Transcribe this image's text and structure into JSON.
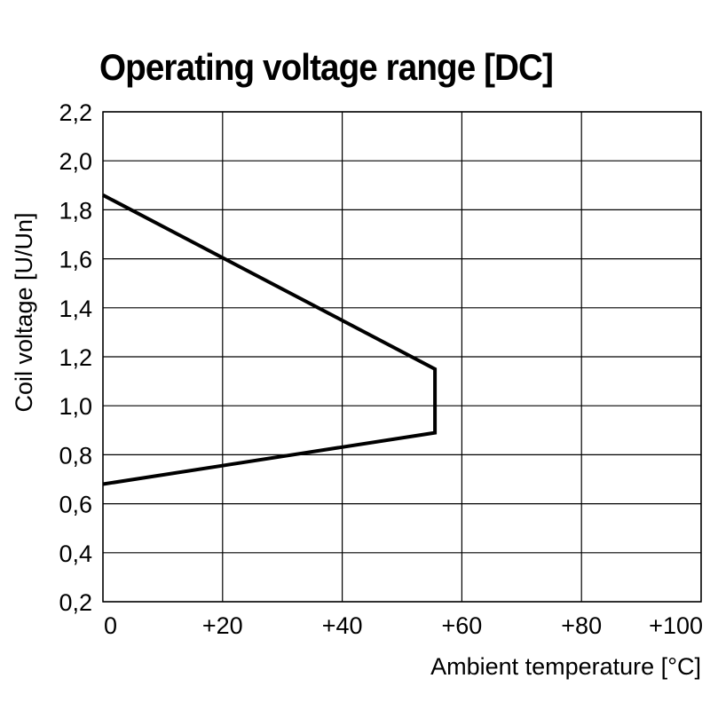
{
  "chart_data": {
    "type": "line",
    "title": "Operating voltage range [DC]",
    "xlabel": "Ambient temperature [°C]",
    "ylabel": "Coil voltage [U/Un]",
    "xlim": [
      0,
      100
    ],
    "ylim": [
      0.2,
      2.2
    ],
    "x_ticks": [
      {
        "value": 0,
        "label": "0"
      },
      {
        "value": 20,
        "label": "+20"
      },
      {
        "value": 40,
        "label": "+40"
      },
      {
        "value": 60,
        "label": "+60"
      },
      {
        "value": 80,
        "label": "+80"
      },
      {
        "value": 100,
        "label": "+100"
      }
    ],
    "y_ticks": [
      {
        "value": 2.2,
        "label": "2,2"
      },
      {
        "value": 2.0,
        "label": "2,0"
      },
      {
        "value": 1.8,
        "label": "1,8"
      },
      {
        "value": 1.6,
        "label": "1,6"
      },
      {
        "value": 1.4,
        "label": "1,4"
      },
      {
        "value": 1.2,
        "label": "1,2"
      },
      {
        "value": 1.0,
        "label": "1,0"
      },
      {
        "value": 0.8,
        "label": "0,8"
      },
      {
        "value": 0.6,
        "label": "0,6"
      },
      {
        "value": 0.4,
        "label": "0,4"
      },
      {
        "value": 0.2,
        "label": "0,2"
      }
    ],
    "grid": true,
    "series": [
      {
        "x": [
          0,
          55.5,
          55.5,
          0
        ],
        "y": [
          1.86,
          1.15,
          0.89,
          0.68
        ]
      }
    ]
  }
}
